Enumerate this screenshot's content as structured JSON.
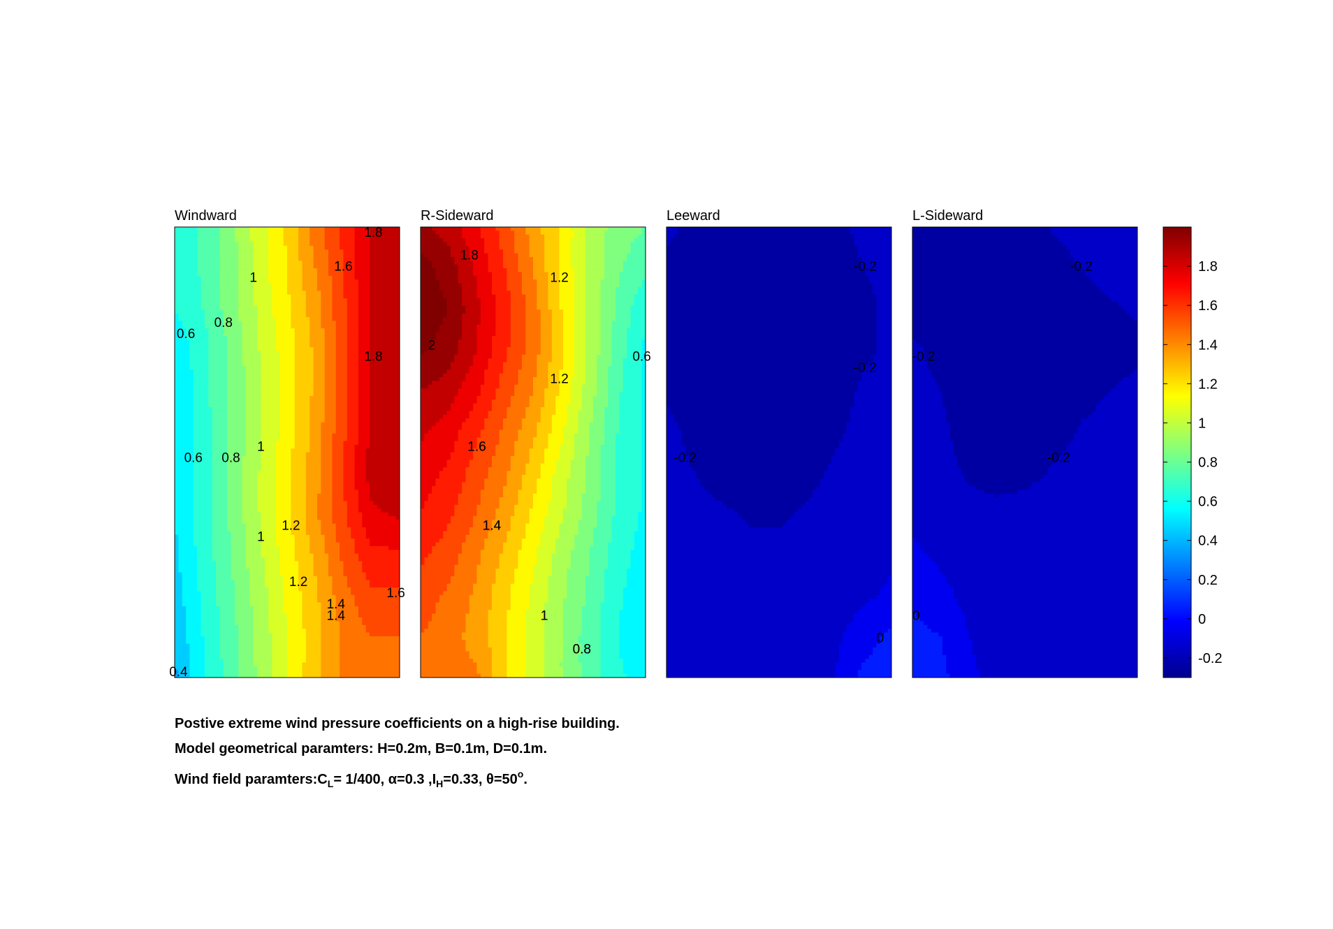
{
  "chart_data": {
    "type": "contour",
    "colorbar": {
      "min": -0.3,
      "max": 2.0,
      "ticks": [
        1.8,
        1.6,
        1.4,
        1.2,
        1,
        0.8,
        0.6,
        0.4,
        0.2,
        0,
        -0.2
      ],
      "tick_labels": [
        "1.8",
        "1.6",
        "1.4",
        "1.2",
        "1",
        "0.8",
        "0.6",
        "0.4",
        "0.2",
        "0",
        "-0.2"
      ],
      "colormap": "jet"
    },
    "panels": [
      {
        "title": "Windward",
        "columns": 9,
        "rows": 12,
        "grid": [
          [
            0.62,
            0.72,
            0.87,
            1.05,
            1.22,
            1.45,
            1.63,
            1.8,
            1.88
          ],
          [
            0.6,
            0.72,
            0.85,
            1.05,
            1.2,
            1.4,
            1.6,
            1.82,
            1.9
          ],
          [
            0.6,
            0.7,
            0.85,
            1.02,
            1.18,
            1.35,
            1.58,
            1.82,
            1.9
          ],
          [
            0.52,
            0.66,
            0.82,
            1.0,
            1.15,
            1.32,
            1.58,
            1.82,
            1.9
          ],
          [
            0.5,
            0.66,
            0.82,
            0.98,
            1.15,
            1.32,
            1.58,
            1.82,
            1.9
          ],
          [
            0.5,
            0.65,
            0.82,
            0.98,
            1.15,
            1.34,
            1.58,
            1.82,
            1.9
          ],
          [
            0.5,
            0.65,
            0.82,
            1.0,
            1.18,
            1.36,
            1.6,
            1.85,
            1.88
          ],
          [
            0.5,
            0.65,
            0.82,
            1.0,
            1.18,
            1.38,
            1.58,
            1.78,
            1.82
          ],
          [
            0.48,
            0.64,
            0.8,
            0.98,
            1.15,
            1.32,
            1.52,
            1.68,
            1.68
          ],
          [
            0.45,
            0.62,
            0.78,
            0.95,
            1.12,
            1.28,
            1.46,
            1.58,
            1.58
          ],
          [
            0.42,
            0.6,
            0.76,
            0.93,
            1.1,
            1.26,
            1.42,
            1.5,
            1.5
          ],
          [
            0.38,
            0.58,
            0.75,
            0.92,
            1.1,
            1.27,
            1.42,
            1.45,
            1.45
          ]
        ],
        "contour_labels": [
          "1",
          "0.8",
          "1",
          "1.2",
          "1.4",
          "1.6",
          "1.8",
          "0.6",
          "0.8",
          "1",
          "1.2",
          "1.4",
          "1.6",
          "1.8",
          "0.6",
          "0.4"
        ]
      },
      {
        "title": "R-Sideward",
        "columns": 9,
        "rows": 12,
        "grid": [
          [
            1.92,
            1.85,
            1.72,
            1.55,
            1.35,
            1.18,
            0.98,
            0.85,
            0.8
          ],
          [
            2.05,
            1.95,
            1.78,
            1.6,
            1.4,
            1.18,
            0.98,
            0.82,
            0.72
          ],
          [
            2.08,
            2.0,
            1.82,
            1.65,
            1.45,
            1.2,
            0.98,
            0.78,
            0.62
          ],
          [
            2.02,
            1.95,
            1.8,
            1.62,
            1.45,
            1.22,
            0.98,
            0.75,
            0.58
          ],
          [
            1.9,
            1.85,
            1.72,
            1.55,
            1.4,
            1.18,
            0.95,
            0.72,
            0.58
          ],
          [
            1.82,
            1.75,
            1.62,
            1.48,
            1.32,
            1.12,
            0.9,
            0.7,
            0.58
          ],
          [
            1.75,
            1.68,
            1.55,
            1.42,
            1.25,
            1.05,
            0.88,
            0.68,
            0.58
          ],
          [
            1.7,
            1.62,
            1.5,
            1.35,
            1.18,
            1.02,
            0.85,
            0.68,
            0.58
          ],
          [
            1.62,
            1.55,
            1.42,
            1.28,
            1.12,
            0.95,
            0.8,
            0.65,
            0.55
          ],
          [
            1.55,
            1.48,
            1.38,
            1.22,
            1.08,
            0.92,
            0.78,
            0.62,
            0.52
          ],
          [
            1.5,
            1.45,
            1.35,
            1.22,
            1.05,
            0.9,
            0.75,
            0.6,
            0.52
          ],
          [
            1.48,
            1.44,
            1.42,
            1.22,
            1.05,
            0.9,
            0.75,
            0.62,
            0.55
          ]
        ],
        "contour_labels": [
          "1.2",
          "2",
          "1.6",
          "1.4",
          "1",
          "0.8",
          "1.8",
          "1.2",
          "1.6",
          "1.4",
          "1",
          "0.8",
          "0.6"
        ]
      },
      {
        "title": "Leeward",
        "columns": 9,
        "rows": 12,
        "grid": [
          [
            -0.18,
            -0.22,
            -0.24,
            -0.25,
            -0.24,
            -0.24,
            -0.22,
            -0.18,
            -0.18
          ],
          [
            -0.22,
            -0.25,
            -0.25,
            -0.25,
            -0.25,
            -0.25,
            -0.24,
            -0.2,
            -0.19
          ],
          [
            -0.24,
            -0.26,
            -0.26,
            -0.26,
            -0.26,
            -0.26,
            -0.24,
            -0.21,
            -0.19
          ],
          [
            -0.24,
            -0.26,
            -0.27,
            -0.27,
            -0.27,
            -0.26,
            -0.24,
            -0.21,
            -0.19
          ],
          [
            -0.21,
            -0.24,
            -0.26,
            -0.27,
            -0.27,
            -0.25,
            -0.23,
            -0.19,
            -0.18
          ],
          [
            -0.18,
            -0.22,
            -0.25,
            -0.26,
            -0.26,
            -0.24,
            -0.21,
            -0.18,
            -0.17
          ],
          [
            -0.18,
            -0.2,
            -0.23,
            -0.25,
            -0.25,
            -0.22,
            -0.19,
            -0.17,
            -0.16
          ],
          [
            -0.16,
            -0.18,
            -0.19,
            -0.21,
            -0.21,
            -0.19,
            -0.17,
            -0.16,
            -0.15
          ],
          [
            -0.15,
            -0.16,
            -0.17,
            -0.18,
            -0.18,
            -0.17,
            -0.16,
            -0.14,
            -0.12
          ],
          [
            -0.15,
            -0.15,
            -0.16,
            -0.16,
            -0.16,
            -0.16,
            -0.15,
            -0.12,
            -0.08
          ],
          [
            -0.15,
            -0.15,
            -0.15,
            -0.16,
            -0.16,
            -0.15,
            -0.12,
            -0.05,
            0.03
          ],
          [
            -0.14,
            -0.15,
            -0.15,
            -0.15,
            -0.15,
            -0.14,
            -0.1,
            0.03,
            0.06
          ]
        ],
        "contour_labels": [
          "-0.2",
          "-0.2",
          "-0.2",
          "0"
        ]
      },
      {
        "title": "L-Sideward",
        "columns": 9,
        "rows": 12,
        "grid": [
          [
            -0.26,
            -0.27,
            -0.27,
            -0.27,
            -0.25,
            -0.19,
            -0.16,
            -0.15,
            -0.15
          ],
          [
            -0.26,
            -0.27,
            -0.27,
            -0.27,
            -0.26,
            -0.24,
            -0.2,
            -0.17,
            -0.16
          ],
          [
            -0.25,
            -0.27,
            -0.27,
            -0.27,
            -0.26,
            -0.25,
            -0.23,
            -0.21,
            -0.19
          ],
          [
            -0.18,
            -0.23,
            -0.27,
            -0.27,
            -0.26,
            -0.25,
            -0.24,
            -0.23,
            -0.22
          ],
          [
            -0.17,
            -0.2,
            -0.26,
            -0.27,
            -0.26,
            -0.25,
            -0.23,
            -0.2,
            -0.18
          ],
          [
            -0.17,
            -0.18,
            -0.24,
            -0.26,
            -0.26,
            -0.24,
            -0.19,
            -0.17,
            -0.16
          ],
          [
            -0.16,
            -0.17,
            -0.21,
            -0.24,
            -0.23,
            -0.19,
            -0.16,
            -0.15,
            -0.15
          ],
          [
            -0.13,
            -0.15,
            -0.17,
            -0.17,
            -0.16,
            -0.15,
            -0.15,
            -0.14,
            -0.14
          ],
          [
            -0.08,
            -0.12,
            -0.15,
            -0.15,
            -0.15,
            -0.15,
            -0.14,
            -0.14,
            -0.14
          ],
          [
            -0.02,
            -0.07,
            -0.13,
            -0.15,
            -0.15,
            -0.14,
            -0.14,
            -0.14,
            -0.14
          ],
          [
            0.03,
            0.0,
            -0.1,
            -0.15,
            -0.15,
            -0.14,
            -0.14,
            -0.14,
            -0.14
          ],
          [
            0.05,
            0.03,
            -0.07,
            -0.15,
            -0.15,
            -0.14,
            -0.14,
            -0.14,
            -0.14
          ]
        ],
        "contour_labels": [
          "-0.2",
          "-0.2",
          "-0.2",
          "0"
        ]
      }
    ]
  },
  "caption": {
    "line1": "Postive extreme  wind pressure coefficients on a high-rise building.",
    "line2": "Model geometrical paramters: H=0.2m, B=0.1m, D=0.1m.",
    "line3_prefix": "Wind field paramters:C",
    "line3_cl_sub": "L",
    "line3_cl_val": "= 1/400, ",
    "line3_alpha": "α=0.3 ,I",
    "line3_ih_sub": "H",
    "line3_ih_val": "=0.33, ",
    "line3_theta": "θ=50",
    "line3_deg": "o",
    "line3_end": "."
  }
}
